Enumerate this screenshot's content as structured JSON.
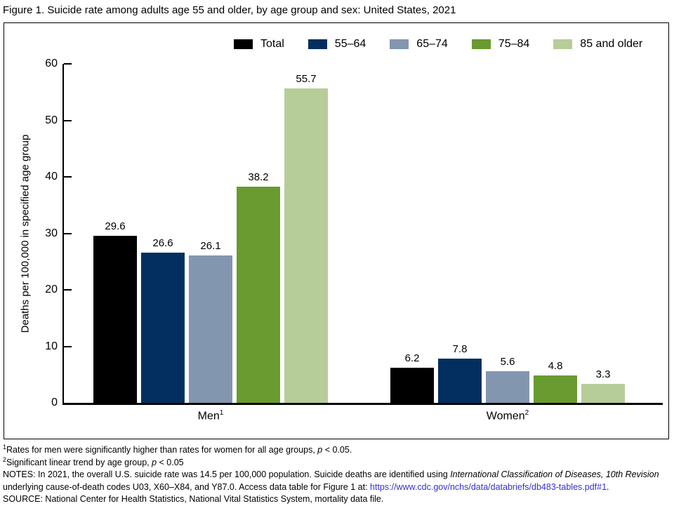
{
  "chart_data": {
    "type": "bar",
    "title": "Figure 1. Suicide rate among adults age 55 and older, by age group and sex: United States, 2021",
    "categories": [
      "Men",
      "Women"
    ],
    "category_superscripts": [
      "1",
      "2"
    ],
    "series": [
      {
        "name": "Total",
        "color": "#000000",
        "values": [
          29.6,
          6.2
        ]
      },
      {
        "name": "55–64",
        "color": "#022f5f",
        "values": [
          26.6,
          7.8
        ]
      },
      {
        "name": "65–74",
        "color": "#8396b0",
        "values": [
          26.1,
          5.6
        ]
      },
      {
        "name": "75–84",
        "color": "#699b30",
        "values": [
          38.2,
          4.8
        ]
      },
      {
        "name": "85 and older",
        "color": "#b7cd98",
        "values": [
          55.7,
          3.3
        ]
      }
    ],
    "xlabel": "",
    "ylabel": "Deaths per 100,000 in specified age group",
    "ylim": [
      0,
      60
    ],
    "yticks": [
      0,
      10,
      20,
      30,
      40,
      50,
      60
    ],
    "grid": false,
    "legend_position": "top",
    "value_labels_decimals": 1
  },
  "link_color": "#3333cc",
  "footnotes": [
    {
      "parts": [
        {
          "text": "1",
          "sup": true
        },
        {
          "text": "Rates for men were significantly higher than rates for women for all age groups, "
        },
        {
          "text": "p",
          "italic": true
        },
        {
          "text": " < 0.05."
        }
      ]
    },
    {
      "parts": [
        {
          "text": "2",
          "sup": true
        },
        {
          "text": "Significant linear trend by age group, "
        },
        {
          "text": "p",
          "italic": true
        },
        {
          "text": " < 0.05"
        }
      ]
    },
    {
      "parts": [
        {
          "text": "NOTES: In 2021, the overall U.S. suicide rate was 14.5 per 100,000 population. Suicide deaths are identified using "
        },
        {
          "text": "International Classification of Diseases, 10th Revision",
          "italic": true
        },
        {
          "text": " underlying cause-of-death codes U03, X60–X84, and Y87.0. Access data table for Figure 1 at: "
        },
        {
          "text": "https://www.cdc.gov/nchs/data/databriefs/db483-tables.pdf#1",
          "link": true
        },
        {
          "text": "."
        }
      ]
    },
    {
      "parts": [
        {
          "text": "SOURCE: National Center for Health Statistics, National Vital Statistics System, mortality data file."
        }
      ]
    }
  ]
}
